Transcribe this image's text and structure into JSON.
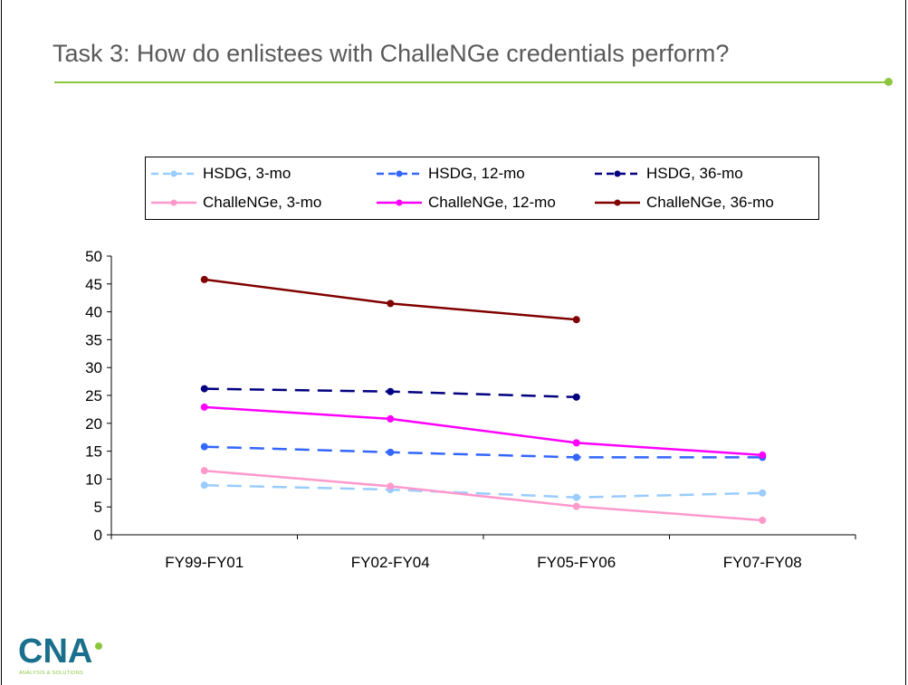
{
  "slide": {
    "title": "Task 3: How do enlistees with ChalleNGe credentials perform?",
    "accent_color": "#8cc63f"
  },
  "logo": {
    "text": "CNA",
    "tagline": "ANALYSIS & SOLUTIONS",
    "color": "#1a6f8c",
    "accent": "#8cc63f"
  },
  "chart_data": {
    "type": "line",
    "categories": [
      "FY99-FY01",
      "FY02-FY04",
      "FY05-FY06",
      "FY07-FY08"
    ],
    "ylim": [
      0,
      50
    ],
    "yticks": [
      "0",
      "5",
      "10",
      "15",
      "20",
      "25",
      "30",
      "35",
      "40",
      "45",
      "50"
    ],
    "xlabel": "",
    "ylabel": "",
    "grid": false,
    "legend_position": "top",
    "series": [
      {
        "name": "HSDG, 3-mo",
        "values": [
          8.9,
          8.1,
          6.7,
          7.5
        ],
        "color": "#99ccff",
        "dash": true
      },
      {
        "name": "HSDG, 12-mo",
        "values": [
          15.8,
          14.8,
          13.9,
          13.9
        ],
        "color": "#3366ff",
        "dash": true
      },
      {
        "name": "HSDG, 36-mo",
        "values": [
          26.2,
          25.7,
          24.7,
          null
        ],
        "color": "#000080",
        "dash": true
      },
      {
        "name": "ChalleNGe, 3-mo",
        "values": [
          11.5,
          8.7,
          5.1,
          2.6
        ],
        "color": "#ff99cc",
        "dash": false
      },
      {
        "name": "ChalleNGe, 12-mo",
        "values": [
          22.9,
          20.8,
          16.5,
          14.3
        ],
        "color": "#ff00ff",
        "dash": false
      },
      {
        "name": "ChalleNGe, 36-mo",
        "values": [
          45.8,
          41.5,
          38.6,
          null
        ],
        "color": "#800000",
        "dash": false
      }
    ]
  }
}
